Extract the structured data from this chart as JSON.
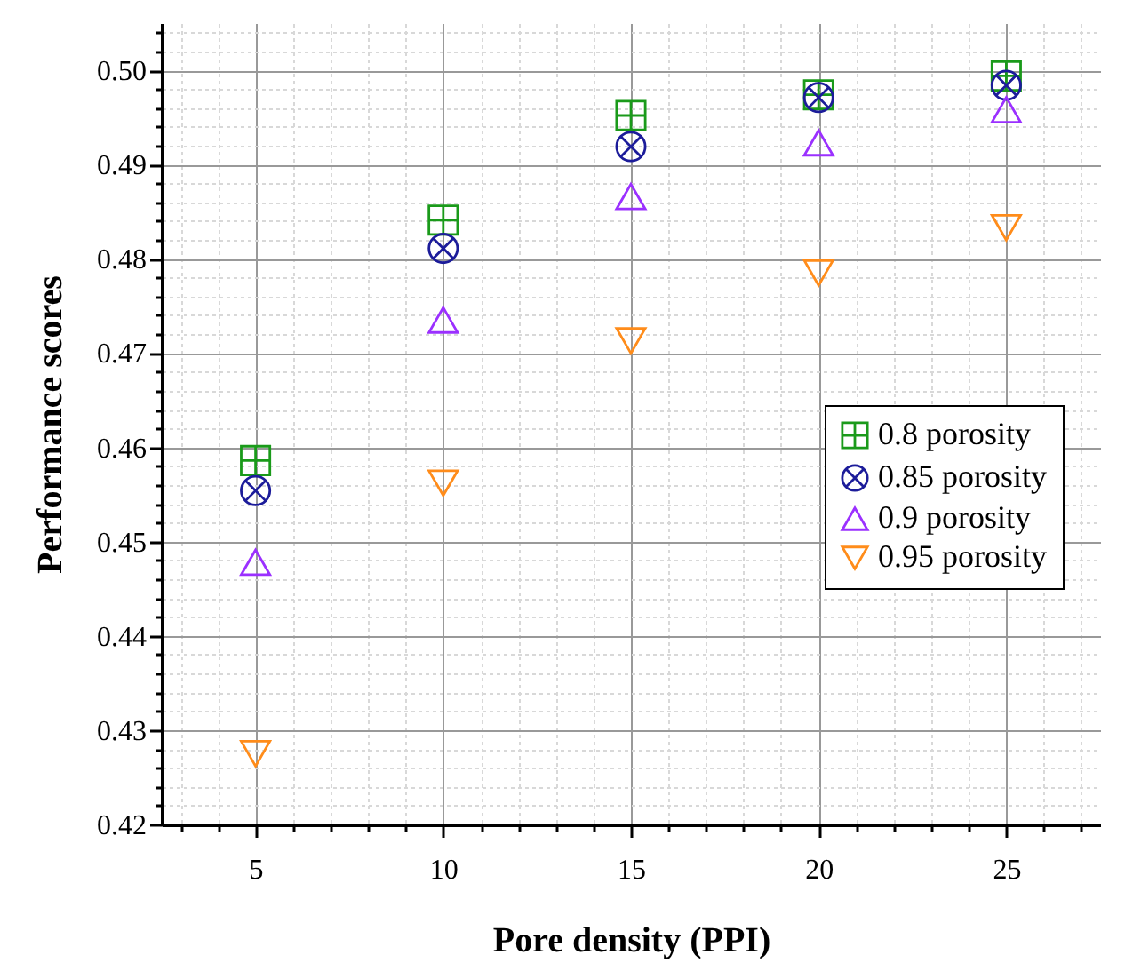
{
  "chart_data": {
    "type": "scatter",
    "xlabel": "Pore density (PPI)",
    "ylabel": "Performance scores",
    "x": [
      5,
      10,
      15,
      20,
      25
    ],
    "series": [
      {
        "name": "0.8 porosity",
        "color": "#1a9a1a",
        "values": [
          0.4586,
          0.4841,
          0.4952,
          0.4974,
          0.4994
        ]
      },
      {
        "name": "0.85 porosity",
        "color": "#1c1c9a",
        "values": [
          0.4554,
          0.4811,
          0.4919,
          0.4971,
          0.4984
        ]
      },
      {
        "name": "0.9 porosity",
        "color": "#9b30ff",
        "values": [
          0.4478,
          0.4735,
          0.4866,
          0.4923,
          0.4958
        ]
      },
      {
        "name": "0.95 porosity",
        "color": "#ff8c1a",
        "values": [
          0.4275,
          0.4562,
          0.4713,
          0.4785,
          0.4833
        ]
      }
    ],
    "xlim": [
      2.5,
      27.5
    ],
    "xticks": [
      {
        "value": 3,
        "label": null
      },
      {
        "value": 4,
        "label": null
      },
      5,
      {
        "value": 6,
        "label": null
      },
      {
        "value": 7,
        "label": null
      },
      {
        "value": 8,
        "label": null
      },
      {
        "value": 9,
        "label": null
      },
      10,
      {
        "value": 11,
        "label": null
      },
      {
        "value": 12,
        "label": null
      },
      {
        "value": 13,
        "label": null
      },
      {
        "value": 14,
        "label": null
      },
      15,
      {
        "value": 16,
        "label": null
      },
      {
        "value": 17,
        "label": null
      },
      {
        "value": 18,
        "label": null
      },
      {
        "value": 19,
        "label": null
      },
      20,
      {
        "value": 21,
        "label": null
      },
      {
        "value": 22,
        "label": null
      },
      {
        "value": 23,
        "label": null
      },
      {
        "value": 24,
        "label": null
      },
      25,
      {
        "value": 26,
        "label": null
      },
      {
        "value": 27,
        "label": null
      }
    ],
    "ylim": [
      0.42,
      0.505
    ],
    "yticks": [
      0.42,
      {
        "value": 0.422,
        "label": null
      },
      {
        "value": 0.424,
        "label": null
      },
      {
        "value": 0.426,
        "label": null
      },
      {
        "value": 0.428,
        "label": null
      },
      0.43,
      {
        "value": 0.432,
        "label": null
      },
      {
        "value": 0.434,
        "label": null
      },
      {
        "value": 0.436,
        "label": null
      },
      {
        "value": 0.438,
        "label": null
      },
      0.44,
      {
        "value": 0.442,
        "label": null
      },
      {
        "value": 0.444,
        "label": null
      },
      {
        "value": 0.446,
        "label": null
      },
      {
        "value": 0.448,
        "label": null
      },
      0.45,
      {
        "value": 0.452,
        "label": null
      },
      {
        "value": 0.454,
        "label": null
      },
      {
        "value": 0.456,
        "label": null
      },
      {
        "value": 0.458,
        "label": null
      },
      0.46,
      {
        "value": 0.462,
        "label": null
      },
      {
        "value": 0.464,
        "label": null
      },
      {
        "value": 0.466,
        "label": null
      },
      {
        "value": 0.468,
        "label": null
      },
      0.47,
      {
        "value": 0.472,
        "label": null
      },
      {
        "value": 0.474,
        "label": null
      },
      {
        "value": 0.476,
        "label": null
      },
      {
        "value": 0.478,
        "label": null
      },
      0.48,
      {
        "value": 0.482,
        "label": null
      },
      {
        "value": 0.484,
        "label": null
      },
      {
        "value": 0.486,
        "label": null
      },
      {
        "value": 0.488,
        "label": null
      },
      0.49,
      {
        "value": 0.492,
        "label": null
      },
      {
        "value": 0.494,
        "label": null
      },
      {
        "value": 0.496,
        "label": null
      },
      {
        "value": 0.498,
        "label": null
      },
      {
        "value": 0.5,
        "label": "0.50"
      },
      {
        "value": 0.502,
        "label": null
      },
      {
        "value": 0.504,
        "label": null
      }
    ],
    "grid": true,
    "legend": "right"
  }
}
